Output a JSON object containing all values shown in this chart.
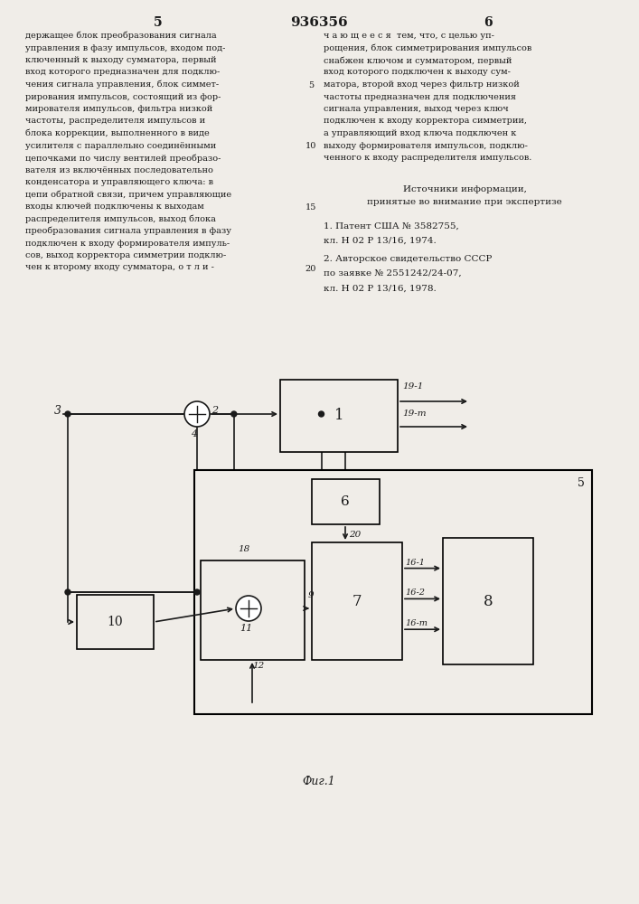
{
  "page_color": "#f0ede8",
  "text_color": "#1a1a1a",
  "line_color": "#1a1a1a",
  "title": "936356",
  "col_left_num": "5",
  "col_right_num": "6",
  "left_text": [
    "держащее блок преобразования сигнала",
    "управления в фазу импульсов, входом под-",
    "ключенный к выходу сумматора, первый",
    "вход которого предназначен для подклю-",
    "чения сигнала управления, блок симмет-",
    "рирования импульсов, состоящий из фор-",
    "мировaтеля импульсов, фильтра низкой",
    "частоты, распределителя импульсов и",
    "блока коррекции, выполненного в виде",
    "усилителя с параллельно соединёнными",
    "цепочками по числу вентилей преобразо-",
    "вателя из включённых последовательно",
    "конденсатора и управляющего ключа: в",
    "цепи обратной связи, причем управляющие",
    "входы ключей подключены к выходам",
    "распределителя импульсов, выход блока",
    "преобразования сигнала управления в фазу",
    "подключен к входу формирователя импуль-",
    "сов, выход корректора симметрии подклю-",
    "чен к второму входу сумматора, о т л и -"
  ],
  "right_text": [
    "ч а ю щ е е с я  тем, что, с целью уп-",
    "рощения, блок симметрирования импульсов",
    "снабжен ключом и сумматором, первый",
    "вход которого подключен к выходу сум-",
    "матора, второй вход через фильтр низкой",
    "частоты предназначен для подключения",
    "сигнала управления, выход через ключ",
    "подключен к входу корректора симметрии,",
    "а управляющий вход ключа подключен к",
    "выходу формирователя импульсов, подклю-",
    "ченного к входу распределителя импульсов."
  ],
  "sources_title": "Источники информации,",
  "sources_subtitle": "принятые во внимание при экспертизе",
  "source1": "1. Патент США № 3582755,",
  "source1b": "кл. H 02 P 13/16, 1974.",
  "source2": "2. Авторское свидетельство СССР",
  "source2b": "по заявке № 2551242/24-07,",
  "source2c": "кл. H 02 P 13/16, 1978.",
  "fig_label": "Фuг.1"
}
